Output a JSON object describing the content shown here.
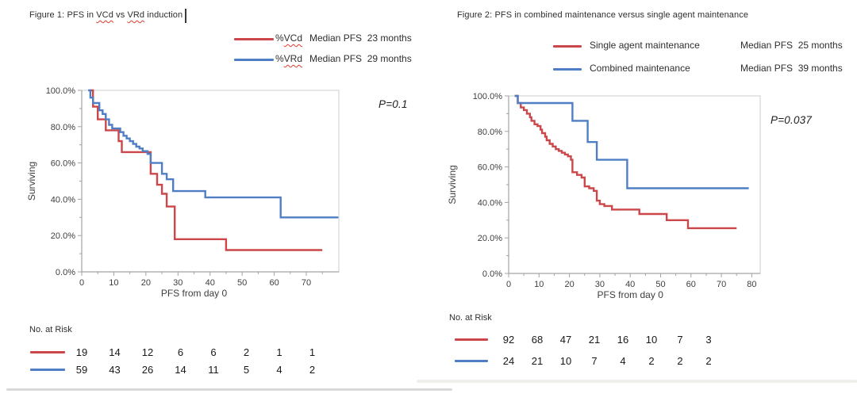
{
  "figure1": {
    "title": {
      "parts": [
        "Figure 1: PFS in ",
        "VCd",
        " vs ",
        "VRd",
        " induction"
      ]
    },
    "legend": [
      {
        "prefix": "%",
        "word": "VCd",
        "detail": "Median PFS  23 months"
      },
      {
        "prefix": "%",
        "word": "VRd",
        "detail": "Median PFS  29 months"
      }
    ]
  },
  "figure2": {
    "title": {
      "text": "Figure 2: PFS in combined maintenance versus single agent maintenance"
    },
    "legend": [
      {
        "word": "Single agent maintenance",
        "detail": "Median PFS  25 months"
      },
      {
        "word": "Combined maintenance",
        "detail": "Median PFS  39 months"
      }
    ]
  },
  "colors": {
    "red_series": "#cb4749",
    "blue_series": "#4f7ec4",
    "frame": "#cccccc",
    "axis": "#a3a3a3"
  },
  "chart_data": [
    {
      "type": "line",
      "subtype": "kaplan-meier-step",
      "title": "Figure 1: PFS in VCd vs VRd induction",
      "xlabel": "PFS from day 0",
      "ylabel": "Surviving",
      "xlim": [
        0,
        80
      ],
      "ylim": [
        0,
        100
      ],
      "xticks": [
        0,
        10,
        20,
        30,
        40,
        50,
        60,
        70
      ],
      "ytick_values": [
        0,
        20,
        40,
        60,
        80,
        100
      ],
      "ytick_labels": [
        "0.0%",
        "20.0%",
        "40.0%",
        "60.0%",
        "80.0%",
        "100.0%"
      ],
      "grid": false,
      "legend_position": "above-plot-right",
      "p_value": "P=0.1",
      "series": [
        {
          "name": "%VCd",
          "median": "Median PFS  23 months",
          "color": "#cb4749",
          "points": [
            [
              2.5,
              100
            ],
            [
              3.5,
              91
            ],
            [
              5,
              84
            ],
            [
              7.5,
              78
            ],
            [
              11.5,
              72
            ],
            [
              12.5,
              66
            ],
            [
              21.5,
              54
            ],
            [
              23.5,
              48
            ],
            [
              25,
              43
            ],
            [
              26.5,
              36
            ],
            [
              29,
              18
            ],
            [
              45,
              12
            ],
            [
              75,
              12
            ]
          ]
        },
        {
          "name": "%VRd",
          "median": "Median PFS  29 months",
          "color": "#4f7ec4",
          "points": [
            [
              2,
              100
            ],
            [
              2.7,
              96
            ],
            [
              3.5,
              93
            ],
            [
              5.5,
              89
            ],
            [
              6.5,
              87
            ],
            [
              7.5,
              84
            ],
            [
              8.5,
              81
            ],
            [
              9.5,
              79
            ],
            [
              12,
              77
            ],
            [
              13,
              75
            ],
            [
              14,
              73.5
            ],
            [
              15,
              72
            ],
            [
              16,
              70.5
            ],
            [
              17,
              69
            ],
            [
              18,
              68
            ],
            [
              19,
              66.5
            ],
            [
              20.5,
              65
            ],
            [
              21.5,
              60
            ],
            [
              25,
              54
            ],
            [
              26.5,
              51
            ],
            [
              28.5,
              44.5
            ],
            [
              38.5,
              41
            ],
            [
              62,
              30
            ],
            [
              80,
              30
            ]
          ]
        }
      ],
      "risk_table": {
        "label": "No. at Risk",
        "rows": [
          {
            "series": "%VCd",
            "color": "#cb4749",
            "values": [
              "19",
              "14",
              "12",
              "6",
              "6",
              "2",
              "1",
              "1"
            ]
          },
          {
            "series": "%VRd",
            "color": "#4f7ec4",
            "values": [
              "59",
              "43",
              "26",
              "14",
              "11",
              "5",
              "4",
              "2"
            ]
          }
        ]
      }
    },
    {
      "type": "line",
      "subtype": "kaplan-meier-step",
      "title": "Figure 2: PFS in combined maintenance versus single agent maintenance",
      "xlabel": "PFS from day 0",
      "ylabel": "Surviving",
      "xlim": [
        0,
        83
      ],
      "ylim": [
        0,
        100
      ],
      "xticks": [
        0,
        10,
        20,
        30,
        40,
        50,
        60,
        70,
        80
      ],
      "ytick_values": [
        0,
        20,
        40,
        60,
        80,
        100
      ],
      "ytick_labels": [
        "0.0%",
        "20.0%",
        "40.0%",
        "60.0%",
        "80.0%",
        "100.0%"
      ],
      "grid": false,
      "legend_position": "above-plot-right",
      "p_value": "P=0.037",
      "series": [
        {
          "name": "Single agent maintenance",
          "median": "Median PFS  25 months",
          "color": "#cb4749",
          "points": [
            [
              2,
              100
            ],
            [
              3,
              96
            ],
            [
              4,
              93.5
            ],
            [
              5,
              92
            ],
            [
              6,
              90
            ],
            [
              7,
              88
            ],
            [
              7.5,
              86
            ],
            [
              8.5,
              84
            ],
            [
              9.5,
              83
            ],
            [
              10.5,
              81
            ],
            [
              11,
              79
            ],
            [
              12,
              77
            ],
            [
              12.5,
              75
            ],
            [
              13.5,
              73
            ],
            [
              14.5,
              71.5
            ],
            [
              15.5,
              70
            ],
            [
              16.5,
              69
            ],
            [
              17.5,
              68
            ],
            [
              18.5,
              67
            ],
            [
              19.5,
              66
            ],
            [
              20.5,
              64
            ],
            [
              21,
              57
            ],
            [
              22.5,
              55.5
            ],
            [
              24,
              54
            ],
            [
              25,
              49
            ],
            [
              26.5,
              48
            ],
            [
              28,
              46.5
            ],
            [
              29,
              41
            ],
            [
              30,
              39
            ],
            [
              31.5,
              38
            ],
            [
              34,
              36
            ],
            [
              43,
              33.5
            ],
            [
              52,
              30
            ],
            [
              59,
              25.5
            ],
            [
              75,
              25.5
            ]
          ]
        },
        {
          "name": "Combined maintenance",
          "median": "Median PFS  39 months",
          "color": "#4f7ec4",
          "points": [
            [
              2,
              100
            ],
            [
              3,
              96
            ],
            [
              21,
              86
            ],
            [
              26,
              74
            ],
            [
              29,
              64
            ],
            [
              39,
              48
            ],
            [
              79,
              48
            ]
          ]
        }
      ],
      "risk_table": {
        "label": "No. at Risk",
        "rows": [
          {
            "series": "Single agent maintenance",
            "color": "#cb4749",
            "values": [
              "92",
              "68",
              "47",
              "21",
              "16",
              "10",
              "7",
              "3"
            ]
          },
          {
            "series": "Combined maintenance",
            "color": "#4f7ec4",
            "values": [
              "24",
              "21",
              "10",
              "7",
              "4",
              "2",
              "2",
              "2"
            ]
          }
        ]
      }
    }
  ]
}
